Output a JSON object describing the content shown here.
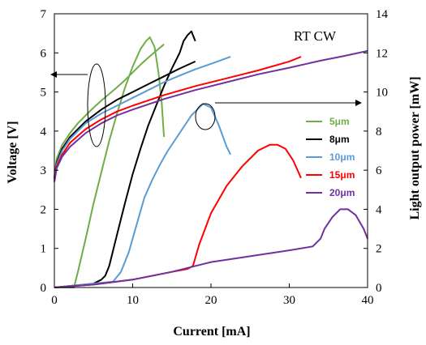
{
  "chart_data": {
    "type": "line",
    "annotation": "RT CW",
    "xlabel": "Current [mA]",
    "ylabel_left": "Voltage [V]",
    "ylabel_right": "Light output power [mW]",
    "xlim": [
      0,
      40
    ],
    "ylim_left": [
      0,
      7
    ],
    "ylim_right": [
      0,
      14
    ],
    "x_ticks": [
      "0",
      "10",
      "20",
      "30",
      "40"
    ],
    "y_left_ticks": [
      "0",
      "1",
      "2",
      "3",
      "4",
      "5",
      "6",
      "7"
    ],
    "y_right_ticks": [
      "0",
      "2",
      "4",
      "6",
      "8",
      "10",
      "12",
      "14"
    ],
    "legend_position": "right",
    "series": [
      {
        "name": "5μm",
        "color": "#70ad47",
        "voltage": [
          [
            0,
            2.85
          ],
          [
            0.3,
            3.3
          ],
          [
            1,
            3.65
          ],
          [
            2,
            3.95
          ],
          [
            3,
            4.2
          ],
          [
            4,
            4.4
          ],
          [
            5,
            4.6
          ],
          [
            6,
            4.78
          ],
          [
            7,
            4.95
          ],
          [
            8,
            5.12
          ],
          [
            9,
            5.3
          ],
          [
            10,
            5.5
          ],
          [
            11,
            5.7
          ],
          [
            12,
            5.88
          ],
          [
            13,
            6.05
          ],
          [
            14,
            6.22
          ]
        ],
        "power": [
          [
            0,
            0
          ],
          [
            2.5,
            0
          ],
          [
            3,
            0.8
          ],
          [
            4,
            2.5
          ],
          [
            5,
            4.3
          ],
          [
            6,
            5.9
          ],
          [
            7,
            7.5
          ],
          [
            8,
            8.9
          ],
          [
            9,
            10.2
          ],
          [
            10,
            11.3
          ],
          [
            11,
            12.2
          ],
          [
            11.7,
            12.6
          ],
          [
            12.2,
            12.8
          ],
          [
            12.8,
            12.3
          ],
          [
            13.3,
            11
          ],
          [
            13.7,
            9.5
          ],
          [
            14,
            7.7
          ]
        ]
      },
      {
        "name": "8μm",
        "color": "#000000",
        "voltage": [
          [
            0,
            2.8
          ],
          [
            0.3,
            3.2
          ],
          [
            1,
            3.55
          ],
          [
            2,
            3.85
          ],
          [
            4,
            4.25
          ],
          [
            6,
            4.55
          ],
          [
            8,
            4.8
          ],
          [
            10,
            5.0
          ],
          [
            12,
            5.2
          ],
          [
            14,
            5.4
          ],
          [
            16,
            5.6
          ],
          [
            18,
            5.78
          ]
        ],
        "power": [
          [
            0,
            0
          ],
          [
            5,
            0.2
          ],
          [
            6,
            0.4
          ],
          [
            6.5,
            0.6
          ],
          [
            7,
            1.1
          ],
          [
            8,
            2.7
          ],
          [
            9,
            4.3
          ],
          [
            10,
            5.8
          ],
          [
            11,
            7.1
          ],
          [
            12,
            8.3
          ],
          [
            13,
            9.3
          ],
          [
            14,
            10.3
          ],
          [
            15,
            11.2
          ],
          [
            16,
            12.0
          ],
          [
            16.5,
            12.6
          ],
          [
            17,
            12.9
          ],
          [
            17.5,
            13.1
          ],
          [
            18,
            12.6
          ]
        ]
      },
      {
        "name": "10μm",
        "color": "#5b9bd5",
        "voltage": [
          [
            0,
            2.75
          ],
          [
            0.3,
            3.15
          ],
          [
            1,
            3.5
          ],
          [
            2,
            3.8
          ],
          [
            4,
            4.2
          ],
          [
            6,
            4.45
          ],
          [
            8,
            4.65
          ],
          [
            10,
            4.85
          ],
          [
            12,
            5.05
          ],
          [
            14,
            5.25
          ],
          [
            16,
            5.42
          ],
          [
            18,
            5.58
          ],
          [
            20,
            5.72
          ],
          [
            22.5,
            5.9
          ]
        ],
        "power": [
          [
            0,
            0
          ],
          [
            7.5,
            0.3
          ],
          [
            8.5,
            0.8
          ],
          [
            9.5,
            1.8
          ],
          [
            10.5,
            3.2
          ],
          [
            11.5,
            4.6
          ],
          [
            12.5,
            5.5
          ],
          [
            13.5,
            6.3
          ],
          [
            14.5,
            7.0
          ],
          [
            15.5,
            7.6
          ],
          [
            16.5,
            8.2
          ],
          [
            17.5,
            8.8
          ],
          [
            18.5,
            9.2
          ],
          [
            19,
            9.4
          ],
          [
            19.5,
            9.3
          ],
          [
            20,
            9.2
          ],
          [
            21,
            8.3
          ],
          [
            22,
            7.2
          ],
          [
            22.5,
            6.8
          ]
        ]
      },
      {
        "name": "15μm",
        "color": "#ff0000",
        "voltage": [
          [
            0,
            2.75
          ],
          [
            0.3,
            3.1
          ],
          [
            1,
            3.4
          ],
          [
            2,
            3.7
          ],
          [
            4,
            4.05
          ],
          [
            6,
            4.3
          ],
          [
            8,
            4.5
          ],
          [
            10,
            4.65
          ],
          [
            14,
            4.92
          ],
          [
            18,
            5.15
          ],
          [
            22,
            5.35
          ],
          [
            26,
            5.55
          ],
          [
            30,
            5.78
          ],
          [
            31.5,
            5.9
          ]
        ],
        "power": [
          [
            0,
            0
          ],
          [
            5,
            0.15
          ],
          [
            10,
            0.4
          ],
          [
            15,
            0.8
          ],
          [
            17,
            0.95
          ],
          [
            17.7,
            1.1
          ],
          [
            18.5,
            2.2
          ],
          [
            20,
            3.8
          ],
          [
            22,
            5.2
          ],
          [
            24,
            6.2
          ],
          [
            26,
            7.0
          ],
          [
            27.5,
            7.3
          ],
          [
            28.5,
            7.3
          ],
          [
            29.5,
            7.1
          ],
          [
            30.5,
            6.5
          ],
          [
            31.5,
            5.6
          ]
        ]
      },
      {
        "name": "20μm",
        "color": "#7030a0",
        "voltage": [
          [
            0,
            2.7
          ],
          [
            0.3,
            3.05
          ],
          [
            1,
            3.35
          ],
          [
            2,
            3.6
          ],
          [
            4,
            3.95
          ],
          [
            6,
            4.2
          ],
          [
            8,
            4.4
          ],
          [
            10,
            4.55
          ],
          [
            14,
            4.82
          ],
          [
            18,
            5.05
          ],
          [
            22,
            5.25
          ],
          [
            26,
            5.45
          ],
          [
            30,
            5.62
          ],
          [
            34,
            5.8
          ],
          [
            37,
            5.92
          ],
          [
            40,
            6.05
          ]
        ],
        "power": [
          [
            0,
            0
          ],
          [
            5,
            0.15
          ],
          [
            10,
            0.4
          ],
          [
            15,
            0.8
          ],
          [
            20,
            1.3
          ],
          [
            25,
            1.6
          ],
          [
            30,
            1.9
          ],
          [
            33,
            2.1
          ],
          [
            34,
            2.5
          ],
          [
            34.5,
            3.0
          ],
          [
            35.5,
            3.6
          ],
          [
            36.5,
            4.0
          ],
          [
            37.5,
            4.0
          ],
          [
            38.5,
            3.7
          ],
          [
            39.5,
            3.0
          ],
          [
            40,
            2.5
          ]
        ]
      }
    ]
  }
}
